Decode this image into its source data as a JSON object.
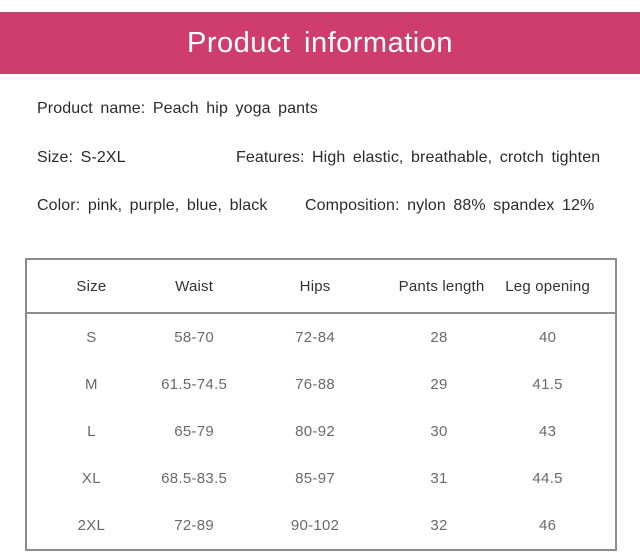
{
  "banner": {
    "title": "Product information",
    "bg_color": "#ce3d6c",
    "text_color": "#ffffff"
  },
  "details": {
    "product_name": "Product name: Peach hip yoga pants",
    "size": "Size: S-2XL",
    "features": "Features: High elastic, breathable, crotch tighten",
    "color": "Color: pink, purple, blue, black",
    "composition": "Composition: nylon 88% spandex 12%"
  },
  "size_chart": {
    "headers": [
      "Size",
      "Waist",
      "Hips",
      "Pants length",
      "Leg opening"
    ],
    "rows": [
      [
        "S",
        "58-70",
        "72-84",
        "28",
        "40"
      ],
      [
        "M",
        "61.5-74.5",
        "76-88",
        "29",
        "41.5"
      ],
      [
        "L",
        "65-79",
        "80-92",
        "30",
        "43"
      ],
      [
        "XL",
        "68.5-83.5",
        "85-97",
        "31",
        "44.5"
      ],
      [
        "2XL",
        "72-89",
        "90-102",
        "32",
        "46"
      ]
    ],
    "border_color": "#8d8d8d"
  }
}
